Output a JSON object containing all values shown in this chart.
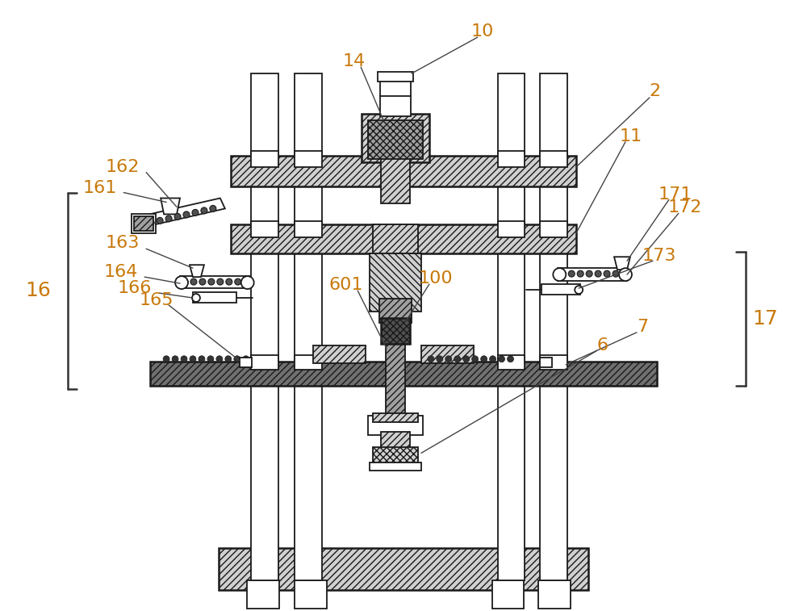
{
  "bg_color": "#ffffff",
  "line_color": "#1a1a1a",
  "label_color": "#c8780a",
  "label_fontsize": 16,
  "bracket_fontsize": 18,
  "figsize": [
    10.0,
    7.57
  ],
  "dpi": 100,
  "light_grey": "#d0d0d0",
  "med_grey": "#a0a0a0",
  "dark_grey": "#707070",
  "dgrey": "#505050"
}
